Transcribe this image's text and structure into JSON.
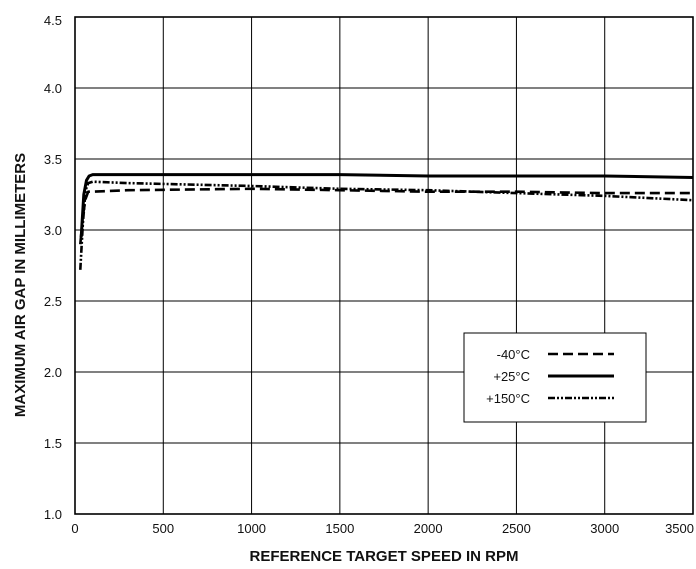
{
  "chart_data": {
    "type": "line",
    "xlabel": "REFERENCE TARGET SPEED IN RPM",
    "ylabel": "MAXIMUM AIR GAP IN MILLIMETERS",
    "xlim": [
      0,
      3500
    ],
    "ylim": [
      1.0,
      4.5
    ],
    "xticks": [
      0,
      500,
      1000,
      1500,
      2000,
      2500,
      3000,
      3500
    ],
    "xtick_labels": [
      "0",
      "500",
      "1000",
      "1500",
      "2000",
      "2500",
      "3000",
      "3500"
    ],
    "yticks": [
      1.0,
      1.5,
      2.0,
      2.5,
      3.0,
      3.5,
      4.0,
      4.5
    ],
    "ytick_labels": [
      "1.0",
      "1.5",
      "2.0",
      "2.5",
      "3.0",
      "3.5",
      "4.0",
      "4.5"
    ],
    "grid": true,
    "legend_position": "lower-right",
    "series": [
      {
        "name": "-40°C",
        "style": "dashed",
        "x": [
          30,
          45,
          60,
          75,
          100,
          300,
          1000,
          1500,
          2000,
          2500,
          3000,
          3500
        ],
        "y": [
          2.9,
          3.1,
          3.22,
          3.27,
          3.27,
          3.28,
          3.29,
          3.28,
          3.27,
          3.27,
          3.26,
          3.26
        ]
      },
      {
        "name": "+25°C",
        "style": "solid",
        "x": [
          35,
          50,
          65,
          80,
          100,
          300,
          1000,
          1500,
          2000,
          2500,
          3000,
          3500
        ],
        "y": [
          2.95,
          3.25,
          3.35,
          3.38,
          3.39,
          3.39,
          3.39,
          3.39,
          3.38,
          3.38,
          3.38,
          3.37
        ]
      },
      {
        "name": "+150°C",
        "style": "dash-dot-dot",
        "x": [
          30,
          45,
          60,
          75,
          100,
          300,
          1000,
          1500,
          2000,
          2500,
          3000,
          3500
        ],
        "y": [
          2.72,
          3.05,
          3.28,
          3.33,
          3.34,
          3.33,
          3.31,
          3.29,
          3.28,
          3.26,
          3.24,
          3.21
        ]
      }
    ]
  },
  "colors": {
    "line": "#000000",
    "grid": "#000000",
    "background": "#ffffff"
  }
}
